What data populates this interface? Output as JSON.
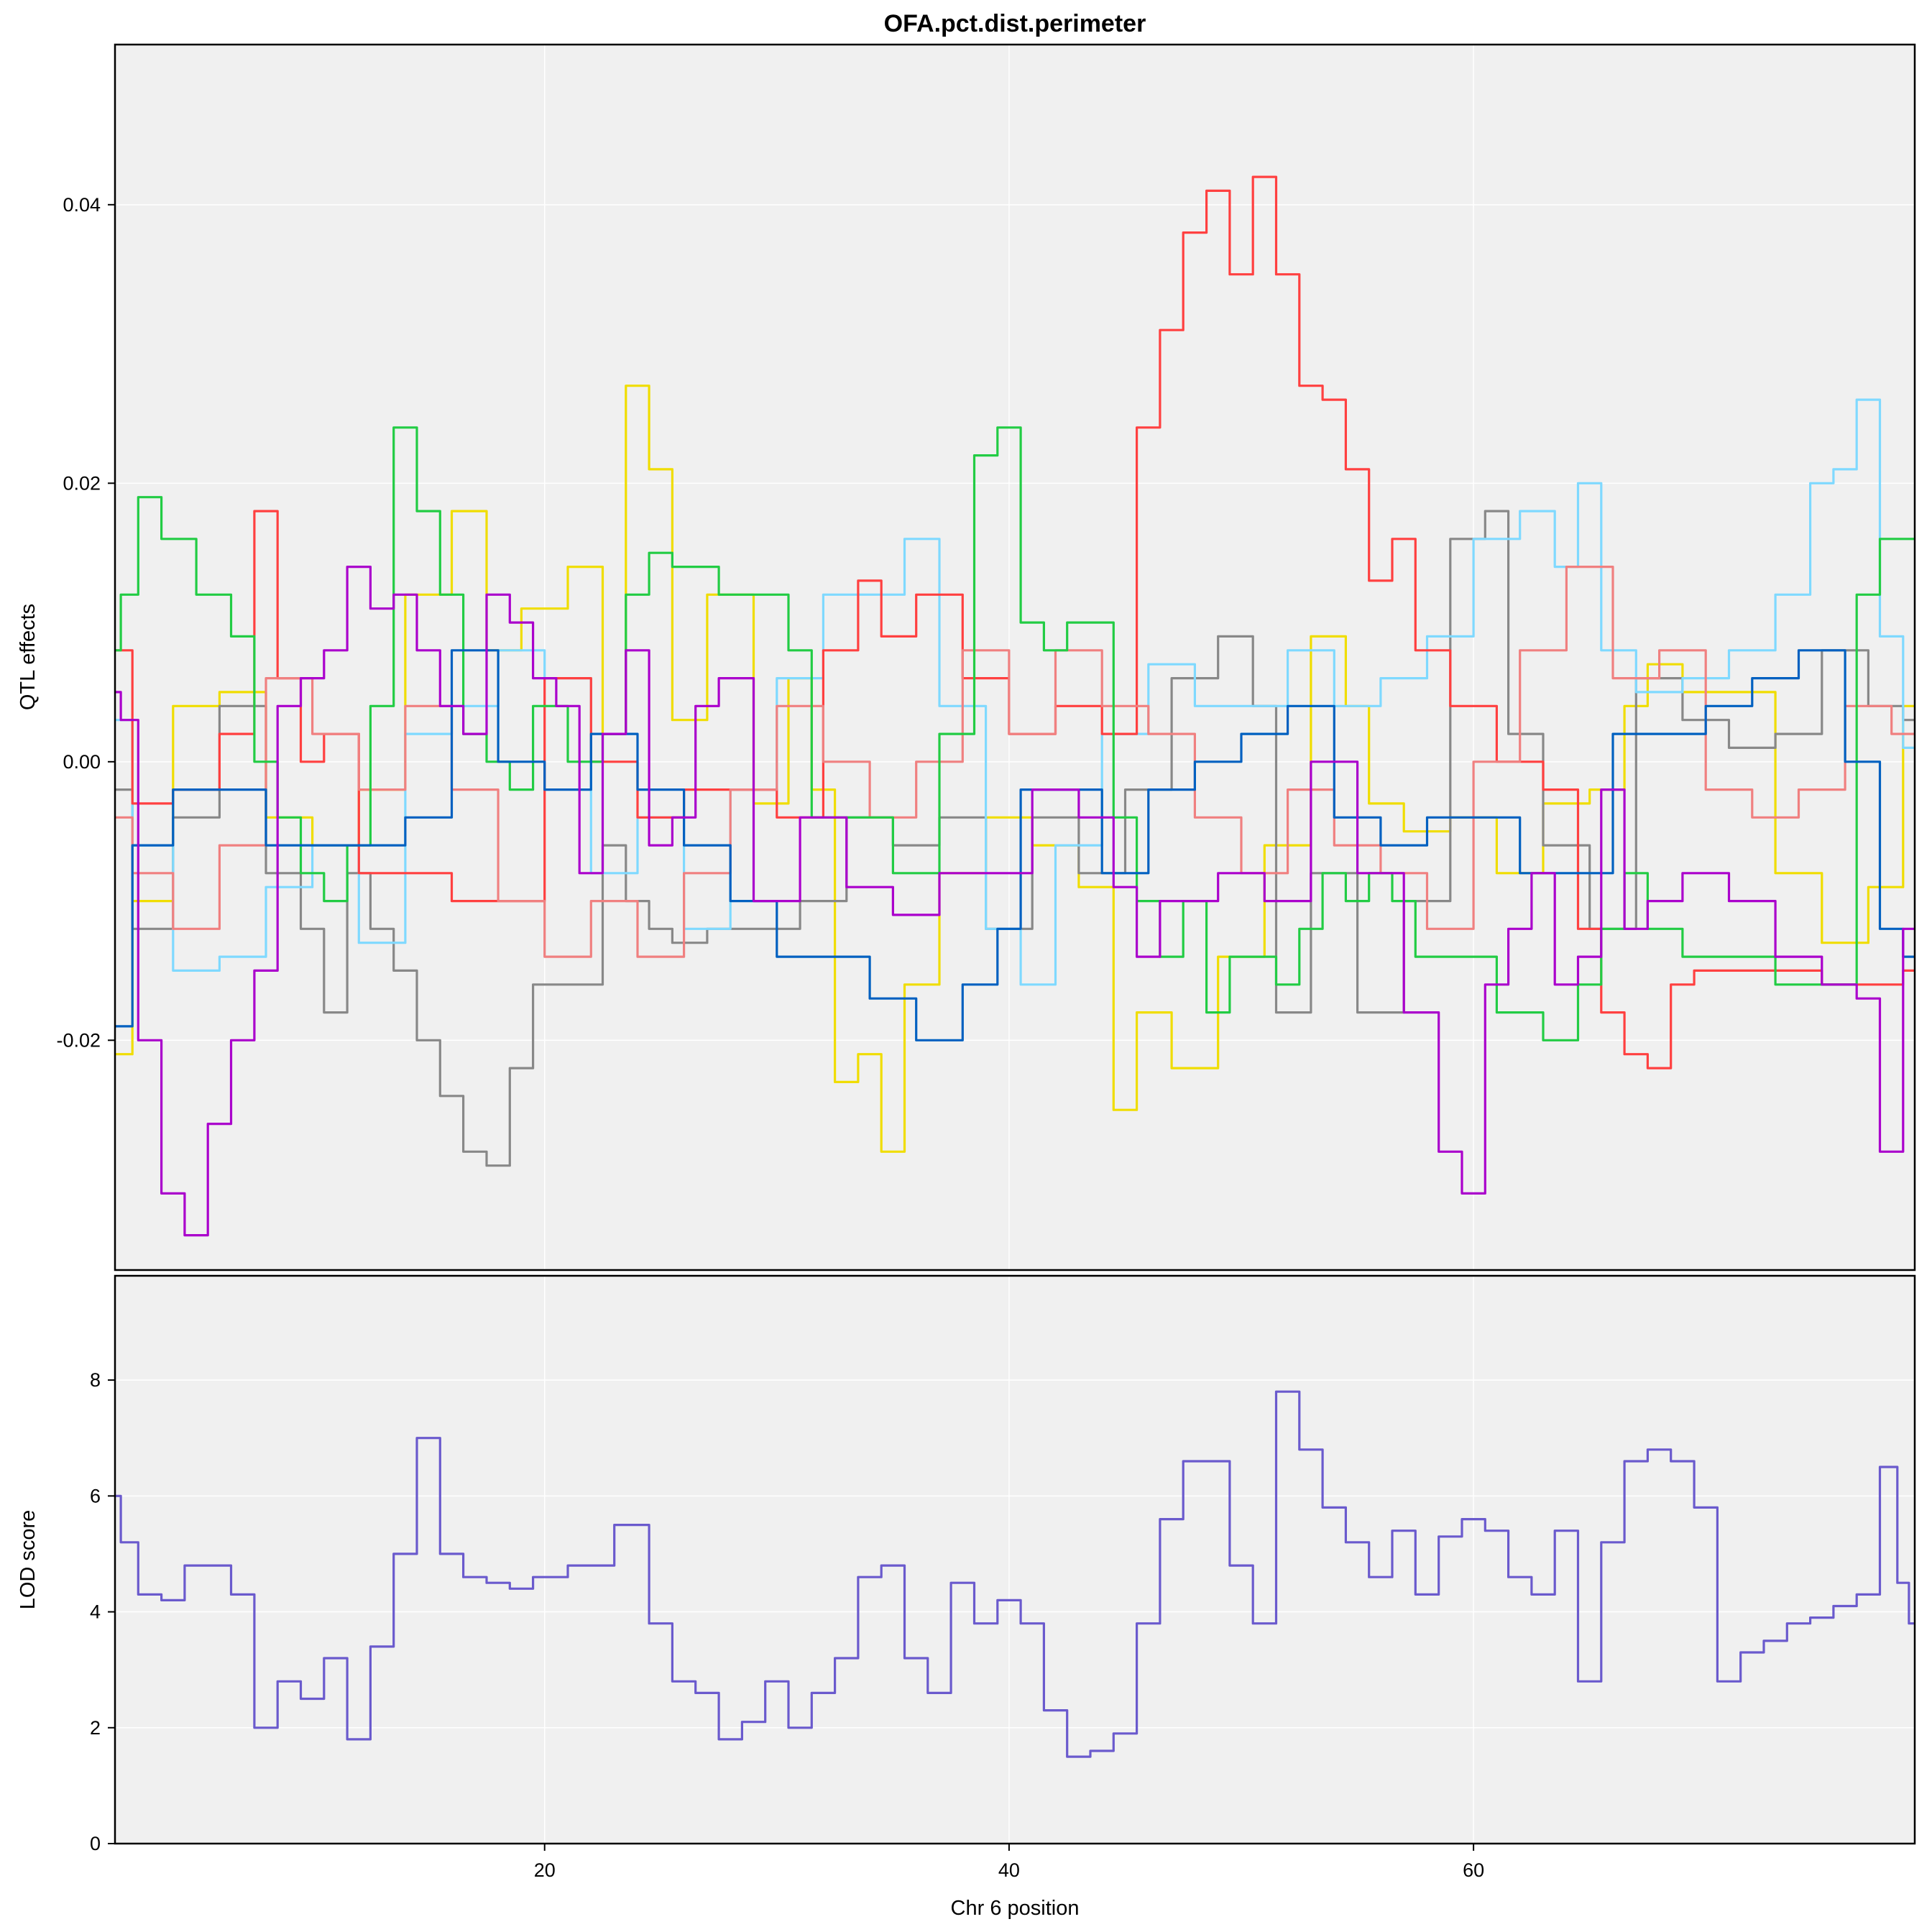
{
  "chart_data": [
    {
      "type": "line",
      "title": "OFA.pct.dist.perimeter",
      "ylabel": "QTL effects",
      "xlabel": "",
      "xlim": [
        1.5,
        79.0
      ],
      "ylim": [
        -0.0365,
        0.0515
      ],
      "yticks": [
        -0.02,
        0.0,
        0.02,
        0.04
      ],
      "ytick_labels": [
        "-0.02",
        "0.00",
        "0.02",
        "0.04"
      ],
      "grid": true,
      "legend": "none",
      "series": [
        {
          "color": "#F0DD00",
          "x": [
            1.5,
            3,
            5,
            7,
            9,
            11,
            13,
            15,
            17,
            18,
            20,
            22,
            23,
            24,
            25,
            26,
            28,
            30,
            31,
            32,
            33,
            34,
            35,
            36,
            38,
            40,
            42,
            44,
            45,
            46,
            48,
            50,
            52,
            54,
            55,
            56,
            58,
            60,
            62,
            64,
            66,
            67,
            68,
            70,
            72,
            74,
            76,
            78,
            79
          ],
          "y": [
            -0.021,
            -0.01,
            0.004,
            0.005,
            -0.004,
            -0.006,
            -0.002,
            0.012,
            0.018,
            0.008,
            0.011,
            0.014,
            0.002,
            0.027,
            0.021,
            0.003,
            0.012,
            -0.003,
            0.006,
            -0.002,
            -0.023,
            -0.021,
            -0.028,
            -0.016,
            -0.008,
            -0.004,
            -0.006,
            -0.009,
            -0.025,
            -0.018,
            -0.022,
            -0.014,
            -0.006,
            0.009,
            0.004,
            -0.003,
            -0.005,
            -0.004,
            -0.008,
            -0.003,
            -0.002,
            0.004,
            0.007,
            0.005,
            0.005,
            -0.008,
            -0.013,
            -0.009,
            0.004
          ]
        },
        {
          "color": "#888888",
          "x": [
            1.5,
            3,
            5,
            7,
            9,
            10,
            11,
            12,
            13,
            14,
            15,
            16,
            17,
            18,
            19,
            20,
            22,
            23,
            24,
            25,
            26,
            28,
            30,
            32,
            34,
            36,
            38,
            40,
            42,
            44,
            46,
            48,
            50,
            51,
            52,
            54,
            56,
            58,
            60,
            61,
            62,
            64,
            66,
            68,
            70,
            72,
            74,
            76,
            78,
            79
          ],
          "y": [
            -0.002,
            -0.012,
            -0.004,
            0.004,
            -0.008,
            -0.012,
            -0.018,
            -0.008,
            -0.012,
            -0.015,
            -0.02,
            -0.024,
            -0.028,
            -0.029,
            -0.022,
            -0.016,
            -0.016,
            -0.006,
            -0.01,
            -0.012,
            -0.013,
            -0.012,
            -0.012,
            -0.01,
            -0.004,
            -0.006,
            -0.004,
            -0.012,
            -0.004,
            -0.008,
            -0.002,
            0.006,
            0.009,
            0.004,
            -0.018,
            -0.008,
            -0.018,
            -0.01,
            0.016,
            0.018,
            0.002,
            -0.006,
            -0.012,
            0.006,
            0.003,
            0.001,
            0.002,
            0.008,
            0.004,
            0.003
          ]
        },
        {
          "color": "#7FD9FF",
          "x": [
            1.5,
            3,
            5,
            7,
            9,
            11,
            13,
            15,
            17,
            19,
            21,
            23,
            25,
            27,
            29,
            31,
            33,
            35,
            36,
            38,
            40,
            41,
            43,
            45,
            47,
            49,
            51,
            53,
            55,
            57,
            59,
            61,
            63,
            64,
            65,
            66,
            68,
            70,
            72,
            74,
            75,
            76,
            77,
            78,
            79
          ],
          "y": [
            0.003,
            -0.006,
            -0.015,
            -0.014,
            -0.009,
            -0.006,
            -0.013,
            0.002,
            0.004,
            0.008,
            0.006,
            -0.008,
            -0.004,
            -0.012,
            -0.002,
            0.006,
            0.012,
            0.012,
            0.016,
            0.004,
            -0.012,
            -0.016,
            -0.006,
            0.002,
            0.007,
            0.004,
            0.004,
            0.008,
            0.004,
            0.006,
            0.009,
            0.016,
            0.018,
            0.014,
            0.02,
            0.008,
            0.005,
            0.006,
            0.008,
            0.012,
            0.02,
            0.021,
            0.026,
            0.009,
            0.001
          ]
        },
        {
          "color": "#FF4040",
          "x": [
            1.5,
            3,
            5,
            7,
            8,
            9,
            10,
            11,
            13,
            15,
            17,
            19,
            21,
            23,
            25,
            27,
            29,
            31,
            33,
            34,
            35,
            37,
            39,
            41,
            43,
            45,
            46,
            47,
            48,
            49,
            50,
            51,
            52,
            53,
            54,
            55,
            56,
            57,
            58,
            60,
            62,
            64,
            65,
            66,
            67,
            68,
            69,
            70,
            72,
            74,
            76,
            78,
            79
          ],
          "y": [
            0.008,
            -0.003,
            -0.002,
            0.002,
            0.018,
            0.006,
            0.0,
            0.002,
            -0.008,
            -0.008,
            -0.01,
            -0.01,
            0.006,
            0.0,
            -0.004,
            -0.002,
            -0.002,
            -0.004,
            0.008,
            0.013,
            0.009,
            0.012,
            0.006,
            0.002,
            0.004,
            0.002,
            0.024,
            0.031,
            0.038,
            0.041,
            0.035,
            0.042,
            0.035,
            0.027,
            0.026,
            0.021,
            0.013,
            0.016,
            0.008,
            0.004,
            0.0,
            -0.002,
            -0.012,
            -0.018,
            -0.021,
            -0.022,
            -0.016,
            -0.015,
            -0.015,
            -0.015,
            -0.016,
            -0.016,
            -0.015
          ]
        },
        {
          "color": "#F08080",
          "x": [
            1.5,
            3,
            5,
            7,
            9,
            11,
            13,
            15,
            17,
            19,
            21,
            23,
            25,
            27,
            29,
            31,
            33,
            35,
            37,
            39,
            41,
            43,
            45,
            47,
            49,
            51,
            53,
            55,
            57,
            59,
            61,
            63,
            65,
            67,
            69,
            71,
            73,
            75,
            77,
            79
          ],
          "y": [
            -0.004,
            -0.008,
            -0.012,
            -0.006,
            0.006,
            0.002,
            -0.002,
            0.004,
            -0.002,
            -0.01,
            -0.014,
            -0.01,
            -0.014,
            -0.008,
            -0.002,
            0.004,
            0.0,
            -0.004,
            0.0,
            0.008,
            0.002,
            0.008,
            0.004,
            0.002,
            -0.004,
            -0.008,
            -0.002,
            -0.006,
            -0.008,
            -0.012,
            0.0,
            0.008,
            0.014,
            0.006,
            0.008,
            -0.002,
            -0.004,
            -0.002,
            0.004,
            0.002
          ]
        },
        {
          "color": "#22CC44",
          "x": [
            1.5,
            2,
            3,
            4,
            6,
            7,
            8,
            9,
            10,
            11,
            12,
            13,
            14,
            15,
            16,
            17,
            18,
            19,
            20,
            22,
            23,
            24,
            25,
            26,
            27,
            28,
            30,
            31,
            32,
            34,
            36,
            38,
            39,
            40,
            41,
            42,
            43,
            44,
            45,
            46,
            47,
            48,
            49,
            50,
            51,
            52,
            53,
            54,
            55,
            56,
            57,
            58,
            60,
            62,
            64,
            65,
            66,
            67,
            68,
            70,
            72,
            74,
            76,
            77,
            78,
            79
          ],
          "y": [
            0.008,
            0.012,
            0.019,
            0.016,
            0.012,
            0.009,
            0.0,
            -0.004,
            -0.008,
            -0.01,
            -0.006,
            0.004,
            0.024,
            0.018,
            0.012,
            0.002,
            0.0,
            -0.002,
            0.004,
            0.0,
            0.002,
            0.012,
            0.015,
            0.014,
            0.014,
            0.012,
            0.012,
            0.008,
            -0.004,
            -0.004,
            -0.008,
            0.002,
            0.022,
            0.024,
            0.01,
            0.008,
            0.01,
            0.01,
            -0.004,
            -0.01,
            -0.014,
            -0.01,
            -0.018,
            -0.014,
            -0.014,
            -0.016,
            -0.012,
            -0.008,
            -0.01,
            -0.008,
            -0.01,
            -0.014,
            -0.014,
            -0.018,
            -0.02,
            -0.016,
            -0.012,
            -0.008,
            -0.012,
            -0.014,
            -0.014,
            -0.016,
            -0.016,
            0.012,
            0.016,
            0.016
          ]
        },
        {
          "color": "#0060C0",
          "x": [
            1.5,
            3,
            5,
            7,
            9,
            11,
            13,
            15,
            17,
            19,
            21,
            23,
            25,
            27,
            29,
            31,
            33,
            35,
            37,
            39,
            40,
            41,
            43,
            45,
            47,
            49,
            51,
            53,
            55,
            57,
            59,
            61,
            63,
            65,
            67,
            69,
            71,
            73,
            75,
            77,
            78,
            79
          ],
          "y": [
            -0.019,
            -0.006,
            -0.002,
            -0.002,
            -0.006,
            -0.006,
            -0.006,
            -0.004,
            0.008,
            0.0,
            -0.002,
            0.002,
            -0.002,
            -0.006,
            -0.01,
            -0.014,
            -0.014,
            -0.017,
            -0.02,
            -0.016,
            -0.012,
            -0.002,
            -0.002,
            -0.008,
            -0.002,
            0.0,
            0.002,
            0.004,
            -0.004,
            -0.006,
            -0.004,
            -0.004,
            -0.008,
            -0.008,
            0.002,
            0.002,
            0.004,
            0.006,
            0.008,
            0.0,
            -0.012,
            -0.014
          ]
        },
        {
          "color": "#AA00CC",
          "x": [
            1.5,
            2,
            3,
            4,
            5,
            6,
            7,
            8,
            9,
            10,
            11,
            12,
            13,
            14,
            15,
            16,
            17,
            18,
            19,
            20,
            21,
            22,
            23,
            24,
            25,
            26,
            27,
            28,
            30,
            32,
            34,
            36,
            38,
            40,
            42,
            44,
            45,
            46,
            47,
            48,
            50,
            52,
            54,
            56,
            58,
            59,
            60,
            61,
            62,
            63,
            64,
            65,
            66,
            67,
            68,
            70,
            72,
            74,
            76,
            77,
            78,
            79
          ],
          "y": [
            0.005,
            0.003,
            -0.02,
            -0.031,
            -0.034,
            -0.026,
            -0.02,
            -0.015,
            0.004,
            0.006,
            0.008,
            0.014,
            0.011,
            0.012,
            0.008,
            0.004,
            0.002,
            0.012,
            0.01,
            0.006,
            0.004,
            -0.008,
            0.002,
            0.008,
            -0.006,
            -0.004,
            0.004,
            0.006,
            -0.01,
            -0.004,
            -0.009,
            -0.011,
            -0.008,
            -0.008,
            -0.002,
            -0.004,
            -0.009,
            -0.014,
            -0.01,
            -0.01,
            -0.008,
            -0.01,
            0.0,
            -0.008,
            -0.018,
            -0.028,
            -0.031,
            -0.016,
            -0.012,
            -0.008,
            -0.016,
            -0.014,
            -0.002,
            -0.012,
            -0.01,
            -0.008,
            -0.01,
            -0.014,
            -0.016,
            -0.017,
            -0.028,
            -0.012
          ]
        }
      ]
    },
    {
      "type": "line",
      "title": "",
      "ylabel": "LOD score",
      "xlabel": "Chr 6 position",
      "xlim": [
        1.5,
        79.0
      ],
      "ylim": [
        0,
        9.8
      ],
      "yticks": [
        0,
        2,
        4,
        6,
        8
      ],
      "ytick_labels": [
        "0",
        "2",
        "4",
        "6",
        "8"
      ],
      "xticks": [
        20,
        40,
        60
      ],
      "xtick_labels": [
        "20",
        "40",
        "60"
      ],
      "grid": true,
      "legend": "none",
      "series": [
        {
          "color": "#6A5ACD",
          "x": [
            1.5,
            2,
            3,
            4,
            5,
            6,
            7,
            8,
            9,
            10,
            11,
            12,
            13,
            14,
            15,
            16,
            17,
            18,
            19,
            20,
            22,
            24,
            25,
            26,
            27,
            28,
            29,
            30,
            31,
            32,
            33,
            34,
            35,
            36,
            37,
            38,
            39,
            40,
            41,
            42,
            43,
            44,
            45,
            46,
            47,
            48,
            49,
            50,
            51,
            52,
            53,
            54,
            55,
            56,
            57,
            58,
            59,
            60,
            61,
            62,
            63,
            64,
            65,
            66,
            67,
            68,
            69,
            70,
            71,
            72,
            73,
            74,
            75,
            76,
            77,
            78,
            78.5,
            79
          ],
          "y": [
            6.0,
            5.2,
            4.3,
            4.2,
            4.8,
            4.8,
            4.3,
            2.0,
            2.8,
            2.5,
            3.2,
            1.8,
            3.4,
            5.0,
            7.0,
            5.0,
            4.6,
            4.5,
            4.4,
            4.6,
            4.8,
            5.5,
            3.8,
            2.8,
            2.6,
            1.8,
            2.1,
            2.8,
            2.0,
            2.6,
            3.2,
            4.6,
            4.8,
            3.2,
            2.6,
            4.5,
            3.8,
            4.2,
            3.8,
            2.3,
            1.5,
            1.6,
            1.9,
            3.8,
            5.6,
            6.6,
            6.6,
            4.8,
            3.8,
            7.8,
            6.8,
            5.8,
            5.2,
            4.6,
            5.4,
            4.3,
            5.3,
            5.6,
            5.4,
            4.6,
            4.3,
            5.4,
            2.8,
            5.2,
            6.6,
            6.8,
            6.6,
            5.8,
            2.8,
            3.3,
            3.5,
            3.8,
            3.9,
            4.1,
            4.3,
            6.5,
            4.5,
            3.8
          ]
        }
      ]
    }
  ]
}
